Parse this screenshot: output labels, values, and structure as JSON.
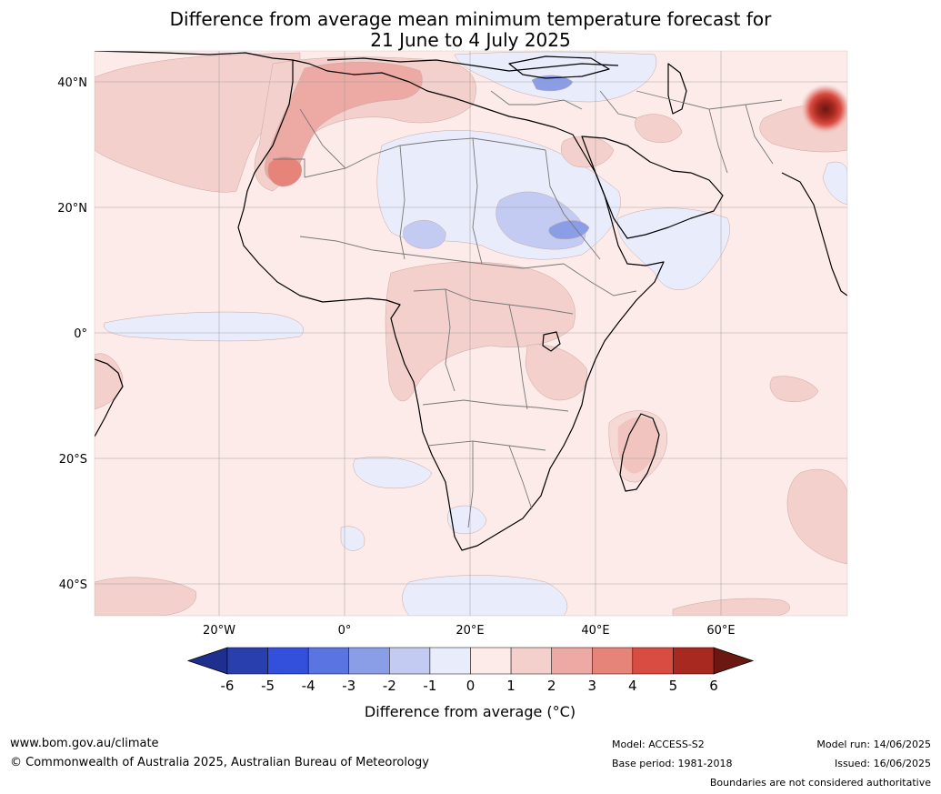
{
  "title": "Difference from average mean minimum temperature forecast for\n21 June to 4 July 2025",
  "map": {
    "lat_labels": [
      "40°N",
      "20°N",
      "0°",
      "20°S",
      "40°S"
    ],
    "lon_labels": [
      "20°W",
      "0°",
      "20°E",
      "40°E",
      "60°E"
    ]
  },
  "colorbar": {
    "label": "Difference from average (°C)",
    "ticks": [
      "-6",
      "-5",
      "-4",
      "-3",
      "-2",
      "-1",
      "0",
      "1",
      "2",
      "3",
      "4",
      "5",
      "6"
    ],
    "colors": [
      "#1f2f8e",
      "#2a3fae",
      "#3350dc",
      "#5a74e2",
      "#8a9ee8",
      "#c3cbf2",
      "#e9ecfb",
      "#fcebe9",
      "#f4d0cc",
      "#eda9a3",
      "#e6847a",
      "#d94c42",
      "#a82920",
      "#6b1712"
    ]
  },
  "footer": {
    "website": "www.bom.gov.au/climate",
    "copyright": "© Commonwealth of Australia 2025, Australian Bureau of Meteorology",
    "model": "Model: ACCESS-S2",
    "base_period": "Base period: 1981-2018",
    "model_run": "Model run: 14/06/2025",
    "issued": "Issued: 16/06/2025",
    "disclaimer": "Boundaries are not considered authoritative"
  }
}
